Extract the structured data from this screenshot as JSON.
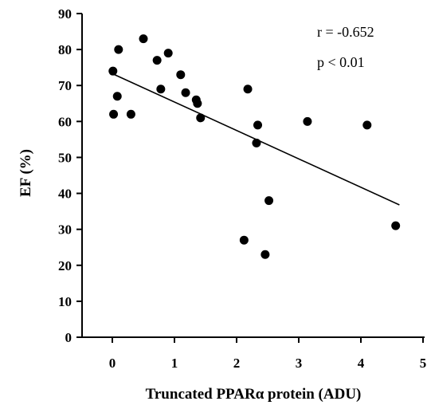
{
  "chart_data": {
    "type": "scatter",
    "xlabel": "Truncated PPARα protein (ADU)",
    "ylabel": "EF (%)",
    "xlim": [
      0,
      5
    ],
    "ylim": [
      0,
      90
    ],
    "xticks": [
      0,
      1,
      2,
      3,
      4,
      5
    ],
    "yticks": [
      0,
      10,
      20,
      30,
      40,
      50,
      60,
      70,
      80,
      90
    ],
    "grid": false,
    "legend": "none",
    "annotations": [
      "r = -0.652",
      "p < 0.01"
    ],
    "points": [
      {
        "x": 0.01,
        "y": 74
      },
      {
        "x": 0.02,
        "y": 62
      },
      {
        "x": 0.08,
        "y": 67
      },
      {
        "x": 0.1,
        "y": 80
      },
      {
        "x": 0.3,
        "y": 62
      },
      {
        "x": 0.5,
        "y": 83
      },
      {
        "x": 0.72,
        "y": 77
      },
      {
        "x": 0.78,
        "y": 69
      },
      {
        "x": 0.9,
        "y": 79
      },
      {
        "x": 1.1,
        "y": 73
      },
      {
        "x": 1.18,
        "y": 68
      },
      {
        "x": 1.35,
        "y": 66
      },
      {
        "x": 1.37,
        "y": 65
      },
      {
        "x": 1.42,
        "y": 61
      },
      {
        "x": 2.12,
        "y": 27
      },
      {
        "x": 2.18,
        "y": 69
      },
      {
        "x": 2.32,
        "y": 54
      },
      {
        "x": 2.34,
        "y": 59
      },
      {
        "x": 2.46,
        "y": 23
      },
      {
        "x": 2.52,
        "y": 38
      },
      {
        "x": 3.14,
        "y": 60
      },
      {
        "x": 4.1,
        "y": 59
      },
      {
        "x": 4.56,
        "y": 31
      }
    ],
    "trendline": {
      "x": [
        0,
        4.62
      ],
      "y": [
        73.3,
        36.8
      ]
    },
    "marker_color": "#000000",
    "line_color": "#000000"
  }
}
